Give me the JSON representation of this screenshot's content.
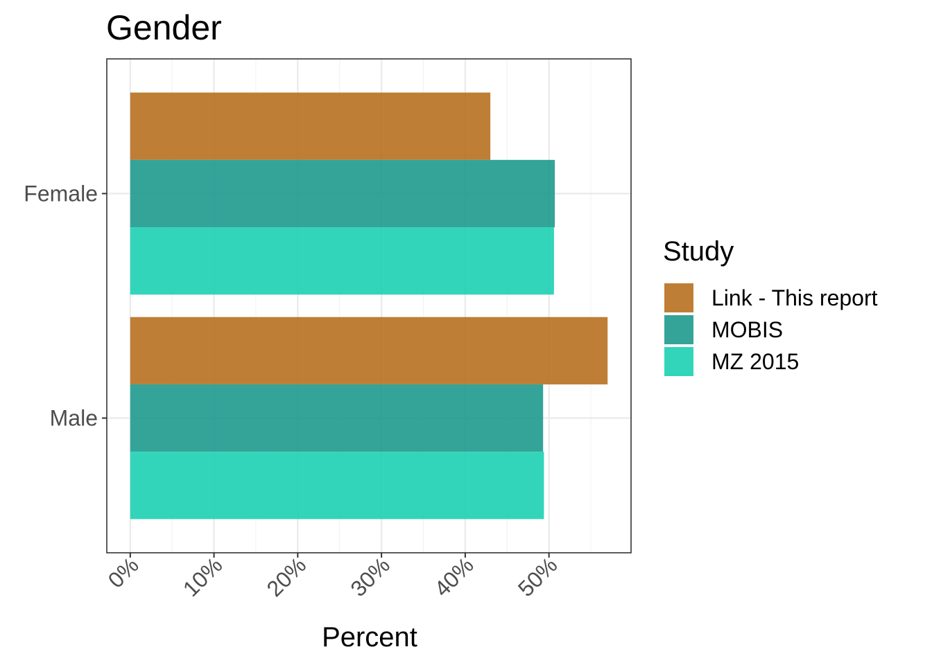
{
  "chart_data": {
    "type": "bar",
    "orientation": "horizontal",
    "title": "Gender",
    "xlabel": "Percent",
    "ylabel": "",
    "categories": [
      "Female",
      "Male"
    ],
    "series": [
      {
        "name": "Link - This report",
        "color": "#B8701F",
        "values": [
          43.0,
          57.0
        ]
      },
      {
        "name": "MOBIS",
        "color": "#1E9A8E",
        "values": [
          50.7,
          49.3
        ]
      },
      {
        "name": "MZ 2015",
        "color": "#1CD0B3",
        "values": [
          50.6,
          49.4
        ]
      }
    ],
    "xlim": [
      -2.8,
      59.8
    ],
    "xticks": [
      0,
      10,
      20,
      30,
      40,
      50
    ],
    "xtick_labels": [
      "0%",
      "10%",
      "20%",
      "30%",
      "40%",
      "50%"
    ],
    "legend": {
      "title": "Study",
      "position": "right"
    },
    "grid": true
  }
}
